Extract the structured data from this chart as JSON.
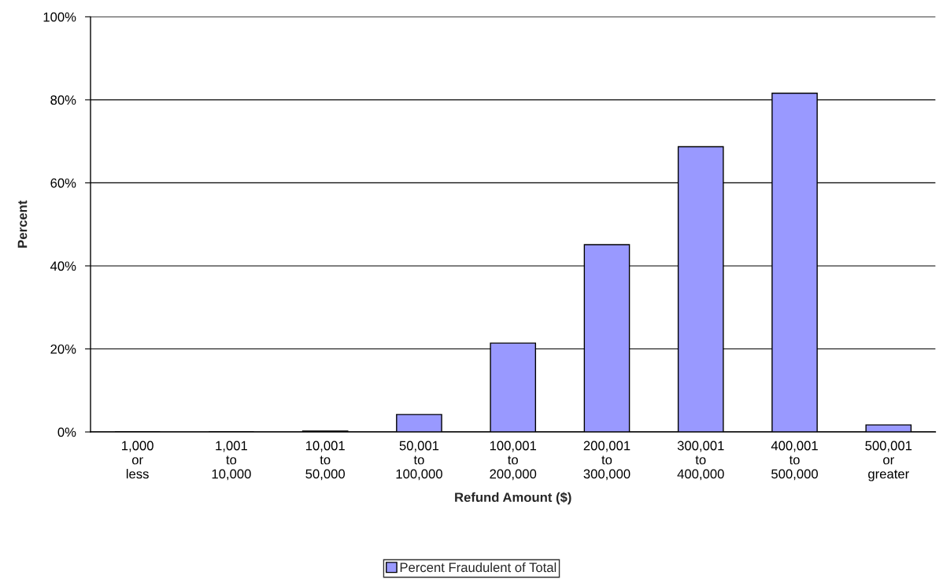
{
  "chart_data": {
    "type": "bar",
    "xlabel": "Refund Amount ($)",
    "ylabel": "Percent",
    "categories": [
      "1,000\nor\nless",
      "1,001\nto\n10,000",
      "10,001\nto\n50,000",
      "50,001\nto\n100,000",
      "100,001\nto\n200,000",
      "200,001\nto\n300,000",
      "300,001\nto\n400,000",
      "400,001\nto\n500,000",
      "500,001\nor\ngreater"
    ],
    "series": [
      {
        "name": "Percent Fraudulent of Total",
        "color": "#9999ff",
        "values": [
          0,
          0,
          0.2,
          4.2,
          21.4,
          45.1,
          68.7,
          81.6,
          1.7
        ]
      }
    ],
    "ylim": [
      0,
      100
    ],
    "yticks": [
      {
        "value": 0,
        "label": "0%"
      },
      {
        "value": 20,
        "label": "20%"
      },
      {
        "value": 40,
        "label": "40%"
      },
      {
        "value": 60,
        "label": "60%"
      },
      {
        "value": 80,
        "label": "80%"
      },
      {
        "value": 100,
        "label": "100%"
      }
    ],
    "grid": "y",
    "legend": "bottom"
  }
}
